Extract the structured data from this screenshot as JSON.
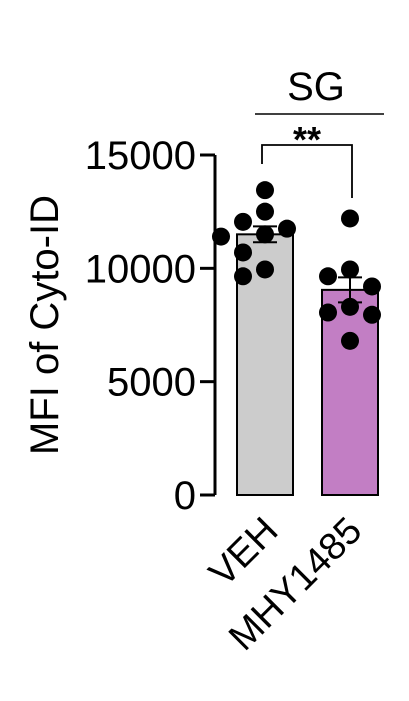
{
  "chart_data": {
    "type": "bar",
    "group_label": "SG",
    "significance": "**",
    "ylabel": "MFI of Cyto-ID",
    "ylim": [
      0,
      15000
    ],
    "yticks": [
      0,
      5000,
      10000,
      15000
    ],
    "categories": [
      "VEH",
      "MHY1485"
    ],
    "bar_colors": [
      "#cccccc",
      "#c27ec4"
    ],
    "means": [
      11500,
      9050
    ],
    "sem": [
      350,
      550
    ],
    "points": [
      [
        13450,
        12500,
        12050,
        11750,
        11400,
        11500,
        10700,
        9950,
        9650
      ],
      [
        12200,
        9950,
        9650,
        9200,
        8300,
        8050,
        7950,
        6800
      ]
    ]
  }
}
